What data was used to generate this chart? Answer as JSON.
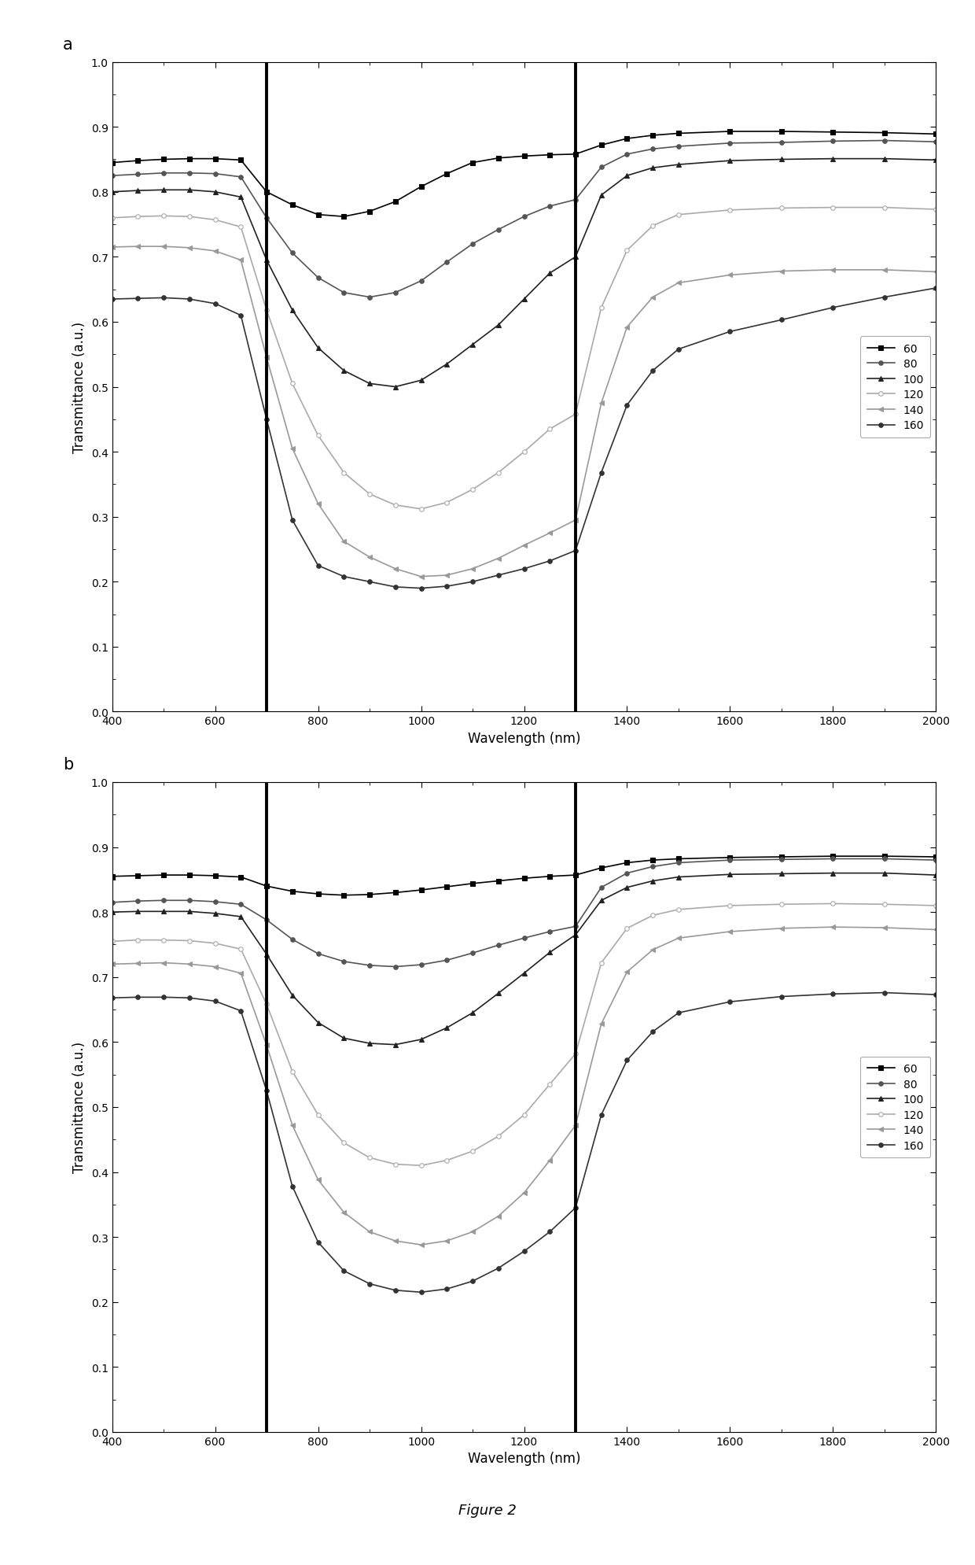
{
  "vlines_a": [
    700,
    1300
  ],
  "vlines_b": [
    700,
    1300
  ],
  "xlabel": "Wavelength (nm)",
  "ylabel": "Transmittance (a.u.)",
  "xlim": [
    400,
    2000
  ],
  "ylim": [
    0.0,
    1.0
  ],
  "yticks": [
    0.0,
    0.1,
    0.2,
    0.3,
    0.4,
    0.5,
    0.6,
    0.7,
    0.8,
    0.9,
    1.0
  ],
  "xticks": [
    400,
    600,
    800,
    1000,
    1200,
    1400,
    1600,
    1800,
    2000
  ],
  "legend_labels": [
    "60",
    "80",
    "100",
    "120",
    "140",
    "160"
  ],
  "panel_a_label": "a",
  "panel_b_label": "b",
  "figure_label": "Figure 2",
  "background_color": "#ffffff",
  "wavelengths": [
    400,
    450,
    500,
    550,
    600,
    650,
    700,
    750,
    800,
    850,
    900,
    950,
    1000,
    1050,
    1100,
    1150,
    1200,
    1250,
    1300,
    1350,
    1400,
    1450,
    1500,
    1600,
    1700,
    1800,
    1900,
    2000
  ],
  "panel_a_data": {
    "s60": [
      0.845,
      0.848,
      0.85,
      0.851,
      0.851,
      0.849,
      0.8,
      0.78,
      0.765,
      0.762,
      0.77,
      0.785,
      0.808,
      0.828,
      0.845,
      0.852,
      0.855,
      0.857,
      0.858,
      0.872,
      0.882,
      0.887,
      0.89,
      0.893,
      0.893,
      0.892,
      0.891,
      0.889
    ],
    "s80": [
      0.825,
      0.827,
      0.829,
      0.829,
      0.828,
      0.823,
      0.76,
      0.706,
      0.668,
      0.645,
      0.638,
      0.645,
      0.663,
      0.692,
      0.72,
      0.742,
      0.762,
      0.778,
      0.788,
      0.838,
      0.858,
      0.866,
      0.87,
      0.875,
      0.876,
      0.878,
      0.879,
      0.877
    ],
    "s100": [
      0.8,
      0.802,
      0.803,
      0.803,
      0.8,
      0.792,
      0.695,
      0.618,
      0.56,
      0.525,
      0.505,
      0.5,
      0.51,
      0.535,
      0.565,
      0.595,
      0.635,
      0.675,
      0.7,
      0.795,
      0.825,
      0.837,
      0.842,
      0.848,
      0.85,
      0.851,
      0.851,
      0.849
    ],
    "s120": [
      0.76,
      0.762,
      0.763,
      0.762,
      0.757,
      0.746,
      0.618,
      0.505,
      0.425,
      0.368,
      0.335,
      0.318,
      0.312,
      0.322,
      0.342,
      0.368,
      0.4,
      0.435,
      0.458,
      0.622,
      0.71,
      0.748,
      0.765,
      0.772,
      0.775,
      0.776,
      0.776,
      0.773
    ],
    "s140": [
      0.715,
      0.716,
      0.716,
      0.714,
      0.709,
      0.695,
      0.545,
      0.405,
      0.32,
      0.262,
      0.238,
      0.22,
      0.208,
      0.21,
      0.22,
      0.236,
      0.256,
      0.275,
      0.295,
      0.475,
      0.592,
      0.638,
      0.66,
      0.672,
      0.678,
      0.68,
      0.68,
      0.677
    ],
    "s160": [
      0.635,
      0.636,
      0.637,
      0.635,
      0.628,
      0.61,
      0.45,
      0.295,
      0.225,
      0.208,
      0.2,
      0.192,
      0.19,
      0.193,
      0.2,
      0.21,
      0.22,
      0.232,
      0.248,
      0.368,
      0.472,
      0.525,
      0.558,
      0.585,
      0.603,
      0.622,
      0.638,
      0.652
    ]
  },
  "panel_b_data": {
    "s60": [
      0.855,
      0.856,
      0.857,
      0.857,
      0.856,
      0.854,
      0.84,
      0.832,
      0.828,
      0.826,
      0.827,
      0.83,
      0.834,
      0.839,
      0.844,
      0.848,
      0.852,
      0.855,
      0.857,
      0.868,
      0.876,
      0.88,
      0.882,
      0.884,
      0.885,
      0.886,
      0.886,
      0.885
    ],
    "s80": [
      0.815,
      0.817,
      0.818,
      0.818,
      0.816,
      0.812,
      0.788,
      0.758,
      0.736,
      0.724,
      0.718,
      0.716,
      0.719,
      0.726,
      0.737,
      0.749,
      0.76,
      0.77,
      0.778,
      0.838,
      0.86,
      0.87,
      0.876,
      0.88,
      0.881,
      0.882,
      0.882,
      0.88
    ],
    "s100": [
      0.8,
      0.801,
      0.801,
      0.801,
      0.798,
      0.793,
      0.735,
      0.672,
      0.63,
      0.606,
      0.598,
      0.596,
      0.604,
      0.622,
      0.645,
      0.675,
      0.706,
      0.738,
      0.765,
      0.818,
      0.838,
      0.848,
      0.854,
      0.858,
      0.859,
      0.86,
      0.86,
      0.857
    ],
    "s120": [
      0.755,
      0.757,
      0.757,
      0.756,
      0.752,
      0.743,
      0.658,
      0.555,
      0.488,
      0.445,
      0.422,
      0.412,
      0.41,
      0.418,
      0.432,
      0.455,
      0.488,
      0.535,
      0.582,
      0.722,
      0.775,
      0.795,
      0.804,
      0.81,
      0.812,
      0.813,
      0.812,
      0.81
    ],
    "s140": [
      0.72,
      0.721,
      0.722,
      0.72,
      0.716,
      0.706,
      0.595,
      0.472,
      0.388,
      0.338,
      0.308,
      0.294,
      0.288,
      0.294,
      0.308,
      0.332,
      0.368,
      0.418,
      0.472,
      0.628,
      0.708,
      0.742,
      0.76,
      0.77,
      0.775,
      0.777,
      0.776,
      0.773
    ],
    "s160": [
      0.668,
      0.669,
      0.669,
      0.668,
      0.663,
      0.648,
      0.525,
      0.378,
      0.292,
      0.248,
      0.228,
      0.218,
      0.215,
      0.22,
      0.232,
      0.252,
      0.278,
      0.308,
      0.345,
      0.488,
      0.572,
      0.616,
      0.645,
      0.662,
      0.67,
      0.674,
      0.676,
      0.673
    ]
  },
  "series_styles": [
    {
      "color": "#000000",
      "marker": "s",
      "ls": "-",
      "mfc": "#000000",
      "label": "60"
    },
    {
      "color": "#555555",
      "marker": "o",
      "ls": "-",
      "mfc": "#555555",
      "label": "80"
    },
    {
      "color": "#222222",
      "marker": "^",
      "ls": "-",
      "mfc": "#222222",
      "label": "100"
    },
    {
      "color": "#aaaaaa",
      "marker": "o",
      "ls": "-",
      "mfc": "white",
      "label": "120"
    },
    {
      "color": "#999999",
      "marker": "<",
      "ls": "-",
      "mfc": "#999999",
      "label": "140"
    },
    {
      "color": "#333333",
      "marker": "o",
      "ls": "-",
      "mfc": "#333333",
      "label": "160"
    }
  ],
  "markersize": 4,
  "linewidth": 1.2
}
